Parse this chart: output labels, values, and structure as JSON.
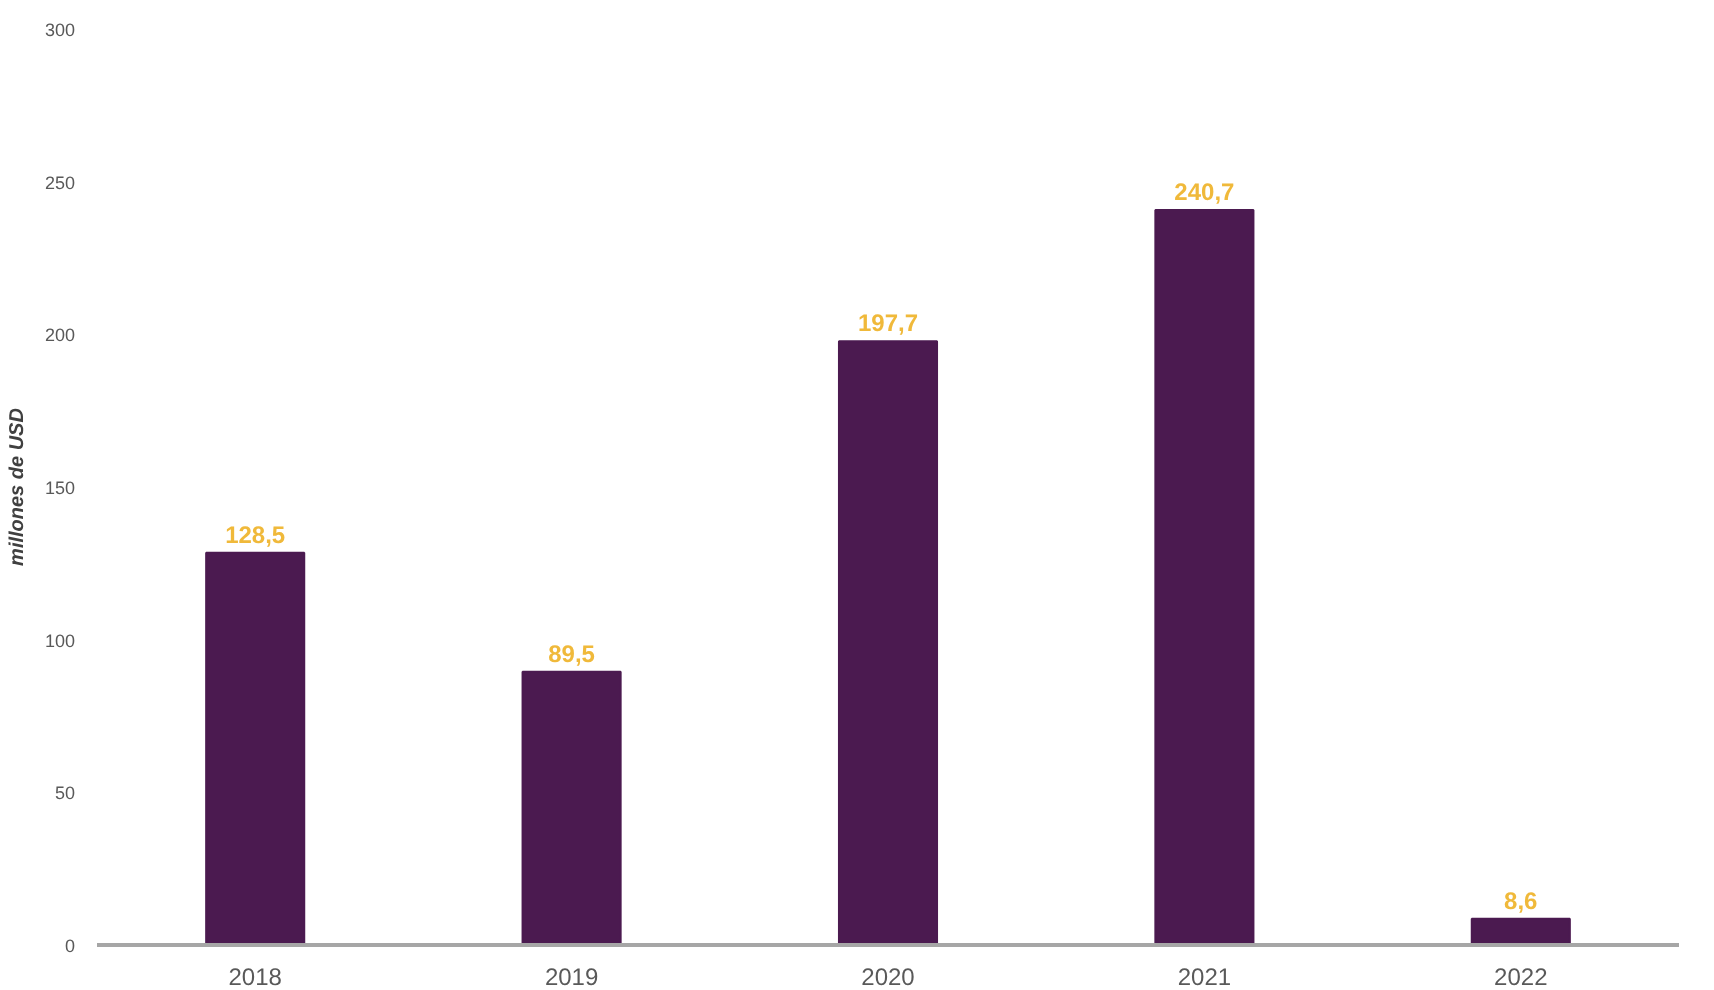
{
  "chart_data": {
    "type": "bar",
    "ylabel": "millones de USD",
    "categories": [
      "2018",
      "2019",
      "2020",
      "2021",
      "2022"
    ],
    "values": [
      128.5,
      89.5,
      197.7,
      240.7,
      8.6
    ],
    "value_labels": [
      "128,5",
      "89,5",
      "197,7",
      "240,7",
      "8,6"
    ],
    "color": "#4b1a50",
    "ylim": [
      0,
      300
    ],
    "yticks": [
      0,
      50,
      100,
      150,
      200,
      250,
      300
    ],
    "grid": false
  }
}
